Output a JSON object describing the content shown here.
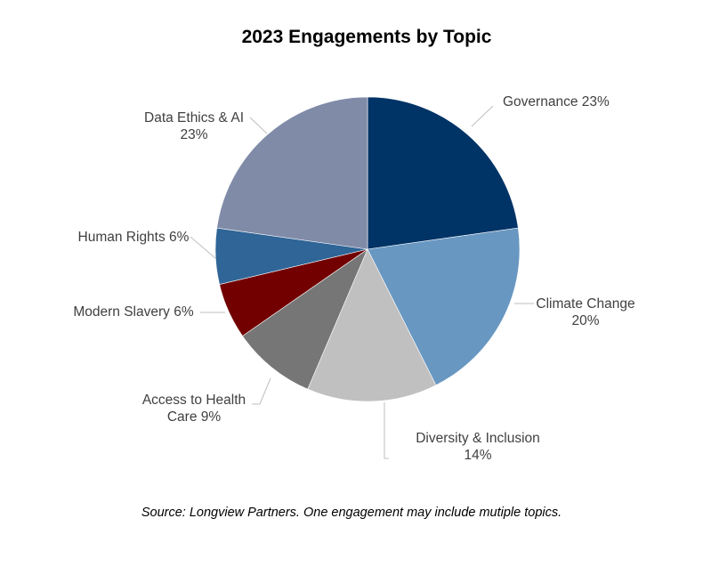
{
  "chart_data": {
    "type": "pie",
    "title": "2023 Engagements by Topic",
    "source": "Source: Longview Partners. One engagement may include mutiple topics.",
    "slices": [
      {
        "name": "Governance",
        "label_lines": [
          "Governance 23%"
        ],
        "value": 23,
        "color": "#003366"
      },
      {
        "name": "Climate Change",
        "label_lines": [
          "Climate Change",
          "20%"
        ],
        "value": 20,
        "color": "#6897c1"
      },
      {
        "name": "Diversity & Inclusion",
        "label_lines": [
          "Diversity & Inclusion",
          "14%"
        ],
        "value": 14,
        "color": "#c0c0c0"
      },
      {
        "name": "Access to Health Care",
        "label_lines": [
          "Access to Health",
          "Care 9%"
        ],
        "value": 9,
        "color": "#767676"
      },
      {
        "name": "Modern Slavery",
        "label_lines": [
          "Modern Slavery  6%"
        ],
        "value": 6,
        "color": "#720000"
      },
      {
        "name": "Human Rights",
        "label_lines": [
          "Human Rights 6%"
        ],
        "value": 6,
        "color": "#2f6597"
      },
      {
        "name": "Data Ethics & AI",
        "label_lines": [
          "Data Ethics & AI",
          "23%"
        ],
        "value": 23,
        "color": "#808ba8"
      }
    ]
  }
}
